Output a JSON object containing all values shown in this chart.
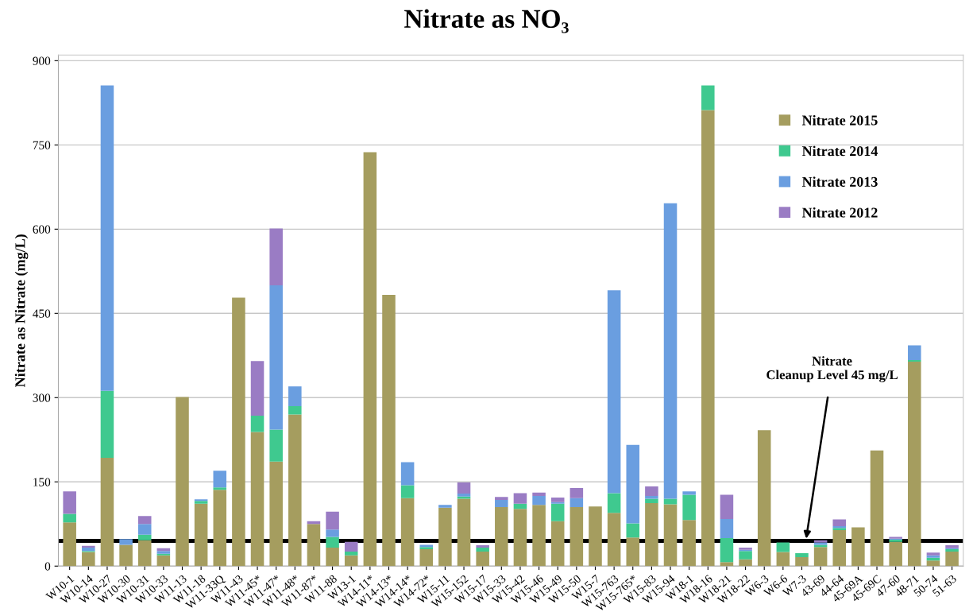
{
  "chart_data": {
    "type": "bar",
    "stacked": true,
    "title": "Nitrate as NO₃",
    "ylabel": "Nitrate as Nitrate (mg/L)",
    "categories": [
      "W10-1",
      "W10-14",
      "W10-27",
      "W10-30",
      "W10-31",
      "W10-33",
      "W11-13",
      "W11-18",
      "W11-33Q",
      "W11-43",
      "W11-45*",
      "W11-47*",
      "W11-48*",
      "W11-87*",
      "W11-88",
      "W13-1",
      "W14-11*",
      "W14-13*",
      "W14-14*",
      "W14-72*",
      "W15-11",
      "W15-152",
      "W15-17",
      "W15-33",
      "W15-42",
      "W15-46",
      "W15-49",
      "W15-50",
      "W15-7",
      "W15-763",
      "W15-765*",
      "W15-83",
      "W15-94",
      "W18-1",
      "W18-16",
      "W18-21",
      "W18-22",
      "W6-3",
      "W6-6",
      "W7-3",
      "43-69",
      "44-64",
      "45-69A",
      "45-69C",
      "47-60",
      "48-71",
      "50-74",
      "51-63"
    ],
    "series": [
      {
        "name": "Nitrate 2015",
        "color": "#a59d5f",
        "values": [
          78,
          25,
          193,
          38,
          46,
          19,
          301,
          111,
          136,
          478,
          239,
          186,
          270,
          75,
          33,
          19,
          737,
          483,
          121,
          30,
          104,
          120,
          26,
          105,
          102,
          109,
          80,
          105,
          106,
          95,
          51,
          112,
          110,
          82,
          812,
          7,
          12,
          242,
          25,
          16,
          34,
          64,
          69,
          206,
          43,
          364,
          10,
          26
        ]
      },
      {
        "name": "Nitrate 2014",
        "color": "#3fc98f",
        "values": [
          15,
          2,
          119,
          0,
          10,
          3,
          0,
          5,
          4,
          0,
          29,
          57,
          15,
          0,
          19,
          7,
          0,
          0,
          23,
          4,
          0,
          4,
          7,
          0,
          9,
          0,
          31,
          0,
          0,
          35,
          25,
          8,
          10,
          45,
          44,
          43,
          15,
          0,
          17,
          7,
          4,
          4,
          0,
          0,
          4,
          3,
          5,
          4
        ]
      },
      {
        "name": "Nitrate 2013",
        "color": "#6a9ee0",
        "values": [
          0,
          6,
          544,
          10,
          19,
          5,
          0,
          3,
          30,
          0,
          0,
          257,
          35,
          0,
          13,
          0,
          0,
          0,
          41,
          4,
          5,
          5,
          0,
          13,
          0,
          16,
          3,
          16,
          0,
          361,
          140,
          5,
          526,
          6,
          0,
          34,
          2,
          0,
          0,
          0,
          4,
          3,
          0,
          0,
          2,
          26,
          4,
          2
        ]
      },
      {
        "name": "Nitrate 2012",
        "color": "#9a7cc4",
        "values": [
          40,
          3,
          0,
          0,
          14,
          5,
          0,
          0,
          0,
          0,
          97,
          101,
          0,
          5,
          32,
          17,
          0,
          0,
          0,
          0,
          0,
          20,
          4,
          5,
          19,
          6,
          8,
          18,
          0,
          0,
          0,
          17,
          0,
          0,
          0,
          43,
          4,
          0,
          0,
          0,
          4,
          12,
          0,
          0,
          3,
          0,
          5,
          5
        ]
      }
    ],
    "ylim": [
      0,
      910
    ],
    "yticks": [
      0,
      150,
      300,
      450,
      600,
      750,
      900
    ],
    "grid": "y",
    "legend": "right",
    "ref_lines": [
      {
        "axis": "y",
        "value": 45,
        "label": "Nitrate\nCleanup Level 45 mg/L",
        "color": "#000000"
      }
    ]
  }
}
